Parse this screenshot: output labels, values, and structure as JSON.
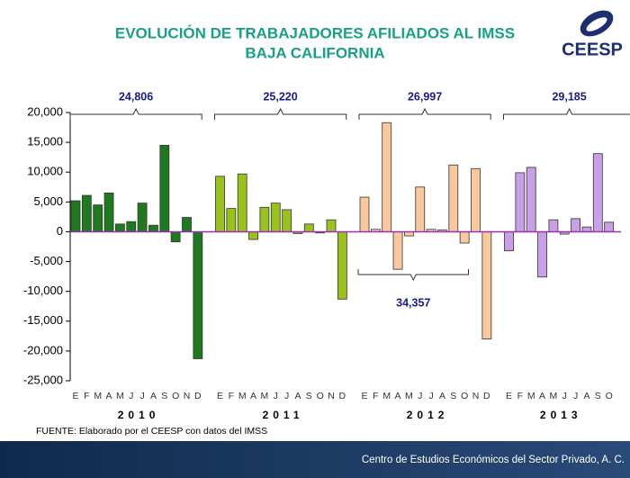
{
  "chart_data": {
    "type": "bar",
    "title": "EVOLUCIÓN DE TRABAJADORES AFILIADOS AL IMSS",
    "subtitle": "BAJA CALIFORNIA",
    "logo": "CEESP",
    "source": "FUENTE: Elaborado por el CEESP con datos del IMSS",
    "footer": "Centro de Estudios Económicos del Sector Privado, A. C.",
    "ylim": [
      -25000,
      20000
    ],
    "yticks": [
      {
        "value": -25000,
        "label": "-25,000"
      },
      {
        "value": -20000,
        "label": "-20,000"
      },
      {
        "value": -15000,
        "label": "-15,000"
      },
      {
        "value": -10000,
        "label": "-10,000"
      },
      {
        "value": -5000,
        "label": "-5,000"
      },
      0,
      {
        "value": 5000,
        "label": "5,000"
      },
      {
        "value": 10000,
        "label": "10,000"
      },
      {
        "value": 15000,
        "label": "15,000"
      },
      {
        "value": 20000,
        "label": "20,000"
      }
    ],
    "series": [
      {
        "name": "2010",
        "color": "#1f7a1f",
        "total": "24,806",
        "categories": [
          "E",
          "F",
          "M",
          "A",
          "M",
          "J",
          "J",
          "A",
          "S",
          "O",
          "N",
          "D"
        ],
        "values": [
          5200,
          6100,
          4500,
          6500,
          1300,
          1700,
          4800,
          1100,
          14500,
          -1700,
          2400,
          -21300
        ]
      },
      {
        "name": "2011",
        "color": "#9ac21c",
        "total": "25,220",
        "categories": [
          "E",
          "F",
          "M",
          "A",
          "M",
          "J",
          "J",
          "A",
          "S",
          "O",
          "N",
          "D"
        ],
        "values": [
          9300,
          3900,
          9700,
          -1300,
          4100,
          4800,
          3700,
          -300,
          1300,
          -200,
          2000,
          -11300
        ]
      },
      {
        "name": "2012",
        "color": "#f9c89c",
        "total": "26,997",
        "categories": [
          "E",
          "F",
          "M",
          "A",
          "M",
          "J",
          "J",
          "A",
          "S",
          "O",
          "N",
          "D"
        ],
        "values": [
          5800,
          400,
          18300,
          -6300,
          -700,
          7500,
          400,
          300,
          11200,
          -1900,
          10600,
          -18000
        ]
      },
      {
        "name": "2013",
        "color": "#c9a0e8",
        "total": "29,185",
        "categories": [
          "E",
          "F",
          "M",
          "A",
          "M",
          "J",
          "J",
          "A",
          "S",
          "O"
        ],
        "values": [
          -3200,
          9900,
          10800,
          -7600,
          2000,
          -400,
          2200,
          800,
          13100,
          1600
        ]
      }
    ],
    "annotation": "34,357"
  }
}
